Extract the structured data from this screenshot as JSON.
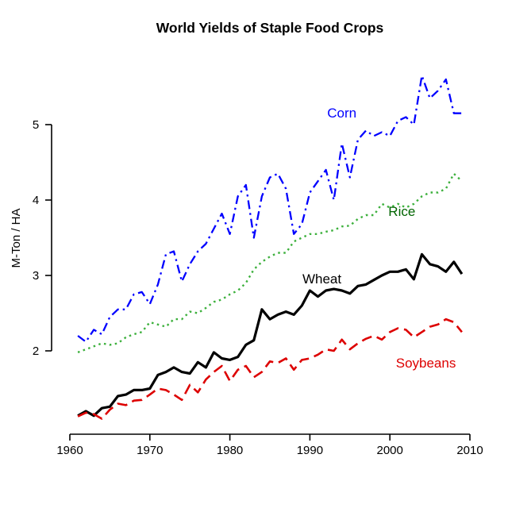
{
  "chart_data": {
    "type": "line",
    "title": "World Yields of Staple Food Crops",
    "xlabel": "",
    "ylabel": "M-Ton / HA",
    "xlim": [
      1960,
      2010
    ],
    "ylim": [
      0.95,
      5.75
    ],
    "x_ticks": [
      1960,
      1970,
      1980,
      1990,
      2000,
      2010
    ],
    "y_ticks": [
      2,
      3,
      4,
      5
    ],
    "grid": false,
    "legend_position": "inline-labels",
    "years": [
      1961,
      1962,
      1963,
      1964,
      1965,
      1966,
      1967,
      1968,
      1969,
      1970,
      1971,
      1972,
      1973,
      1974,
      1975,
      1976,
      1977,
      1978,
      1979,
      1980,
      1981,
      1982,
      1983,
      1984,
      1985,
      1986,
      1987,
      1988,
      1989,
      1990,
      1991,
      1992,
      1993,
      1994,
      1995,
      1996,
      1997,
      1998,
      1999,
      2000,
      2001,
      2002,
      2003,
      2004,
      2005,
      2006,
      2007,
      2008,
      2009
    ],
    "series": [
      {
        "name": "Corn",
        "color": "#0000FF",
        "label_color": "#0000FF",
        "style": "dashdot",
        "line_width": 2.3,
        "label_x": 1994,
        "label_y": 5.15,
        "values": [
          2.2,
          2.12,
          2.28,
          2.22,
          2.45,
          2.55,
          2.55,
          2.75,
          2.78,
          2.62,
          2.88,
          3.28,
          3.32,
          2.92,
          3.15,
          3.32,
          3.42,
          3.62,
          3.82,
          3.55,
          4.05,
          4.2,
          3.5,
          4.05,
          4.3,
          4.35,
          4.15,
          3.55,
          3.68,
          4.1,
          4.25,
          4.4,
          4.0,
          4.75,
          4.3,
          4.8,
          4.92,
          4.85,
          4.9,
          4.85,
          5.05,
          5.1,
          5.0,
          5.65,
          5.35,
          5.45,
          5.6,
          5.15,
          5.15
        ]
      },
      {
        "name": "Rice",
        "color": "#3CB03C",
        "label_color": "#006400",
        "style": "dotted",
        "line_width": 2.4,
        "label_x": 2001.5,
        "label_y": 3.84,
        "values": [
          1.98,
          2.02,
          2.06,
          2.1,
          2.08,
          2.1,
          2.18,
          2.22,
          2.25,
          2.38,
          2.35,
          2.32,
          2.42,
          2.42,
          2.52,
          2.5,
          2.57,
          2.65,
          2.68,
          2.75,
          2.8,
          2.9,
          3.08,
          3.18,
          3.25,
          3.3,
          3.3,
          3.45,
          3.5,
          3.55,
          3.55,
          3.58,
          3.6,
          3.65,
          3.66,
          3.75,
          3.8,
          3.8,
          3.95,
          3.9,
          3.95,
          3.9,
          3.95,
          4.05,
          4.1,
          4.1,
          4.15,
          4.35,
          4.25
        ]
      },
      {
        "name": "Wheat",
        "color": "#000000",
        "label_color": "#000000",
        "style": "solid",
        "line_width": 3.2,
        "label_x": 1991.5,
        "label_y": 2.95,
        "values": [
          1.14,
          1.2,
          1.14,
          1.24,
          1.26,
          1.4,
          1.42,
          1.48,
          1.48,
          1.5,
          1.68,
          1.72,
          1.78,
          1.72,
          1.7,
          1.85,
          1.78,
          1.98,
          1.9,
          1.88,
          1.92,
          2.08,
          2.14,
          2.55,
          2.42,
          2.48,
          2.52,
          2.48,
          2.6,
          2.8,
          2.72,
          2.8,
          2.82,
          2.8,
          2.76,
          2.86,
          2.88,
          2.94,
          3.0,
          3.05,
          3.05,
          3.08,
          2.95,
          3.28,
          3.15,
          3.12,
          3.05,
          3.18,
          3.02
        ]
      },
      {
        "name": "Soybeans",
        "color": "#DD0000",
        "label_color": "#DD0000",
        "style": "dashed",
        "line_width": 2.6,
        "label_x": 2004.5,
        "label_y": 1.83,
        "values": [
          1.13,
          1.18,
          1.16,
          1.1,
          1.22,
          1.3,
          1.28,
          1.34,
          1.35,
          1.42,
          1.5,
          1.48,
          1.42,
          1.35,
          1.55,
          1.45,
          1.62,
          1.72,
          1.8,
          1.6,
          1.75,
          1.8,
          1.65,
          1.72,
          1.86,
          1.84,
          1.9,
          1.75,
          1.88,
          1.9,
          1.95,
          2.02,
          2.0,
          2.15,
          2.02,
          2.1,
          2.16,
          2.2,
          2.15,
          2.25,
          2.3,
          2.28,
          2.18,
          2.25,
          2.32,
          2.35,
          2.42,
          2.38,
          2.25
        ]
      }
    ]
  }
}
